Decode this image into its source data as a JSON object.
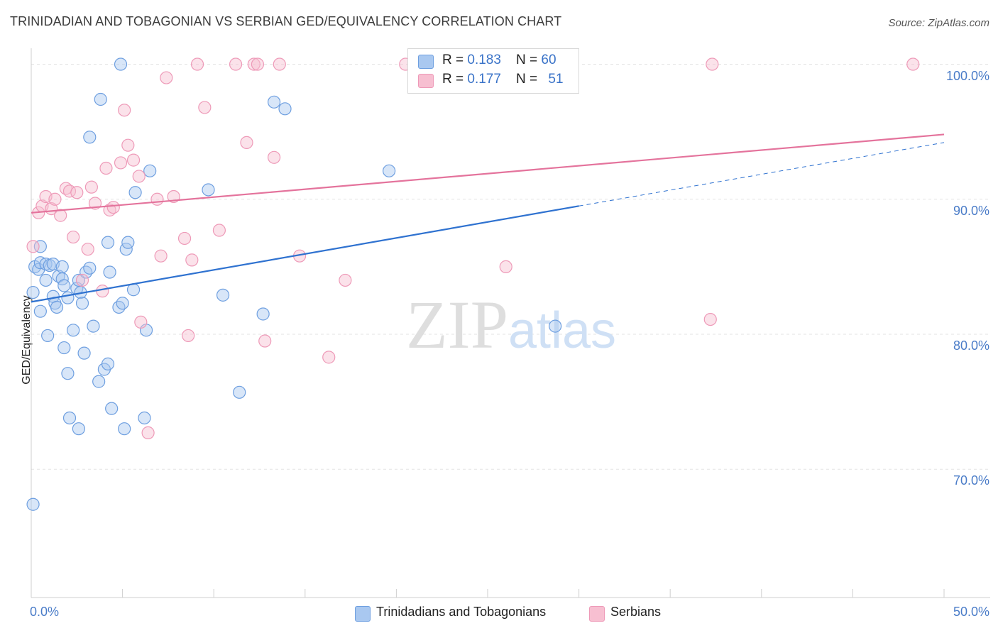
{
  "chart_data": {
    "type": "scatter",
    "title": "TRINIDADIAN AND TOBAGONIAN VS SERBIAN GED/EQUIVALENCY CORRELATION CHART",
    "source": "Source: ZipAtlas.com",
    "xlabel": "",
    "ylabel": "GED/Equivalency",
    "xlim": [
      0,
      50
    ],
    "ylim": [
      60.5,
      101.5
    ],
    "x_tick_labels": [
      "0.0%",
      "50.0%"
    ],
    "y_ticks": [
      70,
      80,
      90,
      100
    ],
    "y_tick_labels": [
      "70.0%",
      "80.0%",
      "90.0%",
      "100.0%"
    ],
    "watermark": "ZIPatlas",
    "colors": {
      "blue_fill": "#a9c8f0",
      "blue_stroke": "#6e9fe0",
      "blue_line": "#2f72d0",
      "pink_fill": "#f7bfd1",
      "pink_stroke": "#ee9ab8",
      "pink_line": "#e4739c"
    },
    "legend": {
      "rows": [
        {
          "r_label": "R = ",
          "r_value": "0.183",
          "n_label": "N = ",
          "n_value": "60"
        },
        {
          "r_label": "R = ",
          "r_value": "0.177",
          "n_label": "N = ",
          "n_value": "51"
        }
      ]
    },
    "series": [
      {
        "name": "Trinidadians and Tobagonians",
        "trend": {
          "x0": 0,
          "y0": 82.4,
          "x1": 30,
          "y1": 89.5,
          "dash_to_x": 50,
          "dash_to_y": 94.2
        },
        "points": [
          [
            0.2,
            85.0
          ],
          [
            0.4,
            84.8
          ],
          [
            0.5,
            85.3
          ],
          [
            0.5,
            86.5
          ],
          [
            0.8,
            85.2
          ],
          [
            0.8,
            84.0
          ],
          [
            0.5,
            81.7
          ],
          [
            0.9,
            79.9
          ],
          [
            1.0,
            85.1
          ],
          [
            1.2,
            85.2
          ],
          [
            1.2,
            82.8
          ],
          [
            1.3,
            82.3
          ],
          [
            1.4,
            82.0
          ],
          [
            1.5,
            84.3
          ],
          [
            1.7,
            84.1
          ],
          [
            1.7,
            85.0
          ],
          [
            1.8,
            83.6
          ],
          [
            1.8,
            79.0
          ],
          [
            2.0,
            82.7
          ],
          [
            2.0,
            77.1
          ],
          [
            2.1,
            73.8
          ],
          [
            2.3,
            80.3
          ],
          [
            2.5,
            83.4
          ],
          [
            2.6,
            84.0
          ],
          [
            2.6,
            73.0
          ],
          [
            2.7,
            83.1
          ],
          [
            2.8,
            82.3
          ],
          [
            2.9,
            78.6
          ],
          [
            3.0,
            84.6
          ],
          [
            3.2,
            94.6
          ],
          [
            3.2,
            84.9
          ],
          [
            3.4,
            80.6
          ],
          [
            3.7,
            76.5
          ],
          [
            3.8,
            97.4
          ],
          [
            4.0,
            77.4
          ],
          [
            4.2,
            77.8
          ],
          [
            4.2,
            86.8
          ],
          [
            4.3,
            84.6
          ],
          [
            4.4,
            74.5
          ],
          [
            4.8,
            82.0
          ],
          [
            4.9,
            100.0
          ],
          [
            5.0,
            82.3
          ],
          [
            5.1,
            73.0
          ],
          [
            5.2,
            86.3
          ],
          [
            5.3,
            86.8
          ],
          [
            5.6,
            83.3
          ],
          [
            5.7,
            90.5
          ],
          [
            6.2,
            73.8
          ],
          [
            6.3,
            80.3
          ],
          [
            6.5,
            92.1
          ],
          [
            9.7,
            90.7
          ],
          [
            10.5,
            82.9
          ],
          [
            11.4,
            75.7
          ],
          [
            12.7,
            81.5
          ],
          [
            13.3,
            97.2
          ],
          [
            13.9,
            96.7
          ],
          [
            19.6,
            92.1
          ],
          [
            28.7,
            80.6
          ],
          [
            0.1,
            67.4
          ],
          [
            0.1,
            83.1
          ]
        ]
      },
      {
        "name": "Serbians",
        "trend": {
          "x0": 0,
          "y0": 89.0,
          "x1": 50,
          "y1": 94.8
        },
        "points": [
          [
            0.1,
            86.5
          ],
          [
            0.4,
            89.0
          ],
          [
            0.6,
            89.5
          ],
          [
            0.8,
            90.2
          ],
          [
            1.1,
            89.3
          ],
          [
            1.3,
            90.0
          ],
          [
            1.6,
            88.8
          ],
          [
            1.9,
            90.8
          ],
          [
            2.1,
            90.6
          ],
          [
            2.3,
            87.2
          ],
          [
            2.5,
            90.5
          ],
          [
            2.8,
            84.0
          ],
          [
            3.1,
            86.3
          ],
          [
            3.3,
            90.9
          ],
          [
            3.5,
            89.7
          ],
          [
            3.9,
            83.2
          ],
          [
            4.1,
            92.3
          ],
          [
            4.3,
            89.2
          ],
          [
            4.5,
            89.4
          ],
          [
            4.9,
            92.7
          ],
          [
            5.1,
            96.6
          ],
          [
            5.3,
            94.0
          ],
          [
            5.6,
            92.9
          ],
          [
            5.9,
            91.7
          ],
          [
            6.0,
            80.9
          ],
          [
            6.4,
            72.7
          ],
          [
            6.9,
            90.0
          ],
          [
            7.1,
            85.8
          ],
          [
            7.4,
            99.0
          ],
          [
            7.8,
            90.2
          ],
          [
            8.4,
            87.1
          ],
          [
            8.6,
            79.9
          ],
          [
            8.8,
            85.5
          ],
          [
            9.1,
            100.0
          ],
          [
            9.5,
            96.8
          ],
          [
            10.3,
            87.7
          ],
          [
            11.2,
            100.0
          ],
          [
            11.8,
            94.2
          ],
          [
            12.2,
            100.0
          ],
          [
            12.4,
            100.0
          ],
          [
            12.8,
            79.5
          ],
          [
            13.3,
            93.1
          ],
          [
            13.6,
            100.0
          ],
          [
            14.7,
            85.8
          ],
          [
            17.2,
            84.0
          ],
          [
            16.3,
            78.3
          ],
          [
            20.5,
            100.0
          ],
          [
            26.0,
            85.0
          ],
          [
            37.2,
            81.1
          ],
          [
            37.3,
            100.0
          ],
          [
            48.3,
            100.0
          ]
        ]
      }
    ]
  }
}
